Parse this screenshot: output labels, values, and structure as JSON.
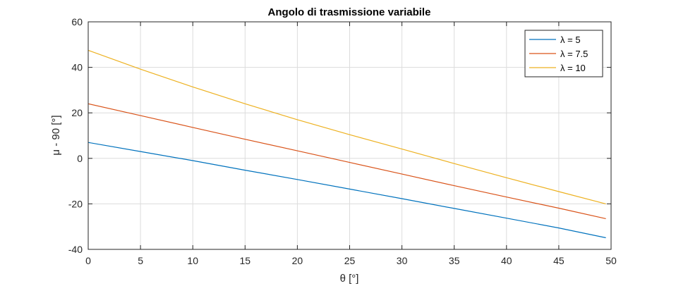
{
  "chart_data": {
    "type": "line",
    "title": "Angolo di trasmissione variabile",
    "xlabel": "θ [°]",
    "ylabel": "μ - 90 [°]",
    "xlim": [
      0,
      50
    ],
    "ylim": [
      -40,
      60
    ],
    "xticks": [
      0,
      5,
      10,
      15,
      20,
      25,
      30,
      35,
      40,
      45,
      50
    ],
    "yticks": [
      -40,
      -20,
      0,
      20,
      40,
      60
    ],
    "grid": true,
    "legend_position": "top-right",
    "x": [
      0,
      5,
      10,
      15,
      20,
      25,
      30,
      35,
      40,
      45,
      49.5
    ],
    "series": [
      {
        "name": "λ = 5",
        "color": "#0072bd",
        "values": [
          7,
          3,
          -1,
          -5.2,
          -9.3,
          -13.5,
          -17.7,
          -22,
          -26.3,
          -30.6,
          -34.9
        ]
      },
      {
        "name": "λ = 7.5",
        "color": "#d95319",
        "values": [
          24,
          18.8,
          13.6,
          8.4,
          3.3,
          -1.8,
          -6.9,
          -12,
          -17,
          -21.9,
          -26.5
        ]
      },
      {
        "name": "λ = 10",
        "color": "#edb120",
        "values": [
          47.5,
          39.2,
          31.4,
          24,
          17,
          10.4,
          4.1,
          -2.3,
          -8.5,
          -14.6,
          -20
        ]
      }
    ]
  }
}
